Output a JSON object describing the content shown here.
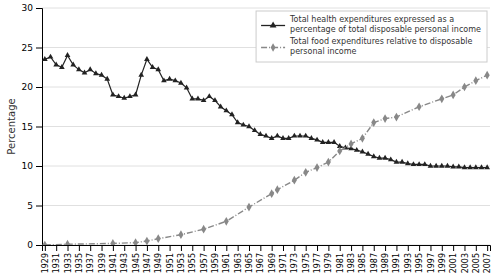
{
  "chart_data": {
    "type": "line",
    "y_label": "Percentage",
    "xlim": [
      1928.5,
      2007.5
    ],
    "xticks": [
      1929,
      1931,
      1933,
      1935,
      1937,
      1939,
      1941,
      1943,
      1945,
      1947,
      1949,
      1951,
      1953,
      1955,
      1957,
      1959,
      1961,
      1963,
      1965,
      1967,
      1969,
      1971,
      1973,
      1975,
      1977,
      1979,
      1981,
      1983,
      1985,
      1987,
      1989,
      1991,
      1993,
      1995,
      1997,
      1999,
      2001,
      2003,
      2005,
      2007
    ],
    "ylim": [
      0,
      30
    ],
    "yticks": [
      0,
      5,
      10,
      15,
      20,
      25,
      30
    ],
    "grid": true,
    "legend": "upper right",
    "series": [
      {
        "name": "Total health expenditures expressed as a\npercentage of total disposable personal income",
        "color": "#222222",
        "marker": "triangle",
        "line_style": "solid",
        "x": [
          1929,
          1930,
          1931,
          1932,
          1933,
          1934,
          1935,
          1936,
          1937,
          1938,
          1939,
          1940,
          1941,
          1942,
          1943,
          1944,
          1945,
          1946,
          1947,
          1948,
          1949,
          1950,
          1951,
          1952,
          1953,
          1954,
          1955,
          1956,
          1957,
          1958,
          1959,
          1960,
          1961,
          1962,
          1963,
          1964,
          1965,
          1966,
          1967,
          1968,
          1969,
          1970,
          1971,
          1972,
          1973,
          1974,
          1975,
          1976,
          1977,
          1978,
          1979,
          1980,
          1981,
          1982,
          1983,
          1984,
          1985,
          1986,
          1987,
          1988,
          1989,
          1990,
          1991,
          1992,
          1993,
          1994,
          1995,
          1996,
          1997,
          1998,
          1999,
          2000,
          2001,
          2002,
          2003,
          2004,
          2005,
          2006,
          2007
        ],
        "values": [
          23.5,
          23.8,
          22.8,
          22.5,
          24.0,
          22.8,
          22.2,
          21.8,
          22.2,
          21.7,
          21.5,
          21.0,
          19.0,
          18.8,
          18.6,
          18.8,
          19.0,
          21.5,
          23.5,
          22.5,
          22.2,
          20.8,
          21.0,
          20.8,
          20.5,
          19.9,
          18.5,
          18.5,
          18.3,
          18.8,
          18.3,
          17.5,
          17.0,
          16.5,
          15.5,
          15.2,
          15.0,
          14.5,
          14.0,
          13.8,
          13.5,
          13.8,
          13.5,
          13.5,
          13.8,
          13.8,
          13.8,
          13.5,
          13.3,
          13.0,
          13.0,
          13.0,
          12.5,
          12.3,
          12.2,
          12.0,
          11.8,
          11.5,
          11.2,
          11.0,
          11.0,
          10.8,
          10.5,
          10.5,
          10.3,
          10.2,
          10.2,
          10.2,
          10.0,
          10.0,
          10.0,
          10.0,
          9.9,
          9.9,
          9.8,
          9.8,
          9.8,
          9.8,
          9.8
        ]
      },
      {
        "name": "Total food expenditures relative to disposable\npersonal income",
        "color": "#888888",
        "marker": "diamond",
        "line_style": "dashdot",
        "x": [
          1929,
          1933,
          1941,
          1945,
          1947,
          1949,
          1953,
          1957,
          1961,
          1965,
          1969,
          1970,
          1973,
          1975,
          1977,
          1979,
          1981,
          1983,
          1985,
          1987,
          1989,
          1991,
          1995,
          1999,
          2001,
          2003,
          2005,
          2007
        ],
        "values": [
          0.0,
          0.1,
          0.2,
          0.3,
          0.5,
          0.8,
          1.3,
          2.0,
          3.0,
          4.8,
          6.5,
          7.0,
          8.2,
          9.2,
          9.8,
          10.5,
          11.9,
          12.8,
          13.5,
          15.5,
          16.0,
          16.2,
          17.5,
          18.5,
          19.0,
          20.0,
          20.8,
          21.5
        ]
      }
    ]
  }
}
